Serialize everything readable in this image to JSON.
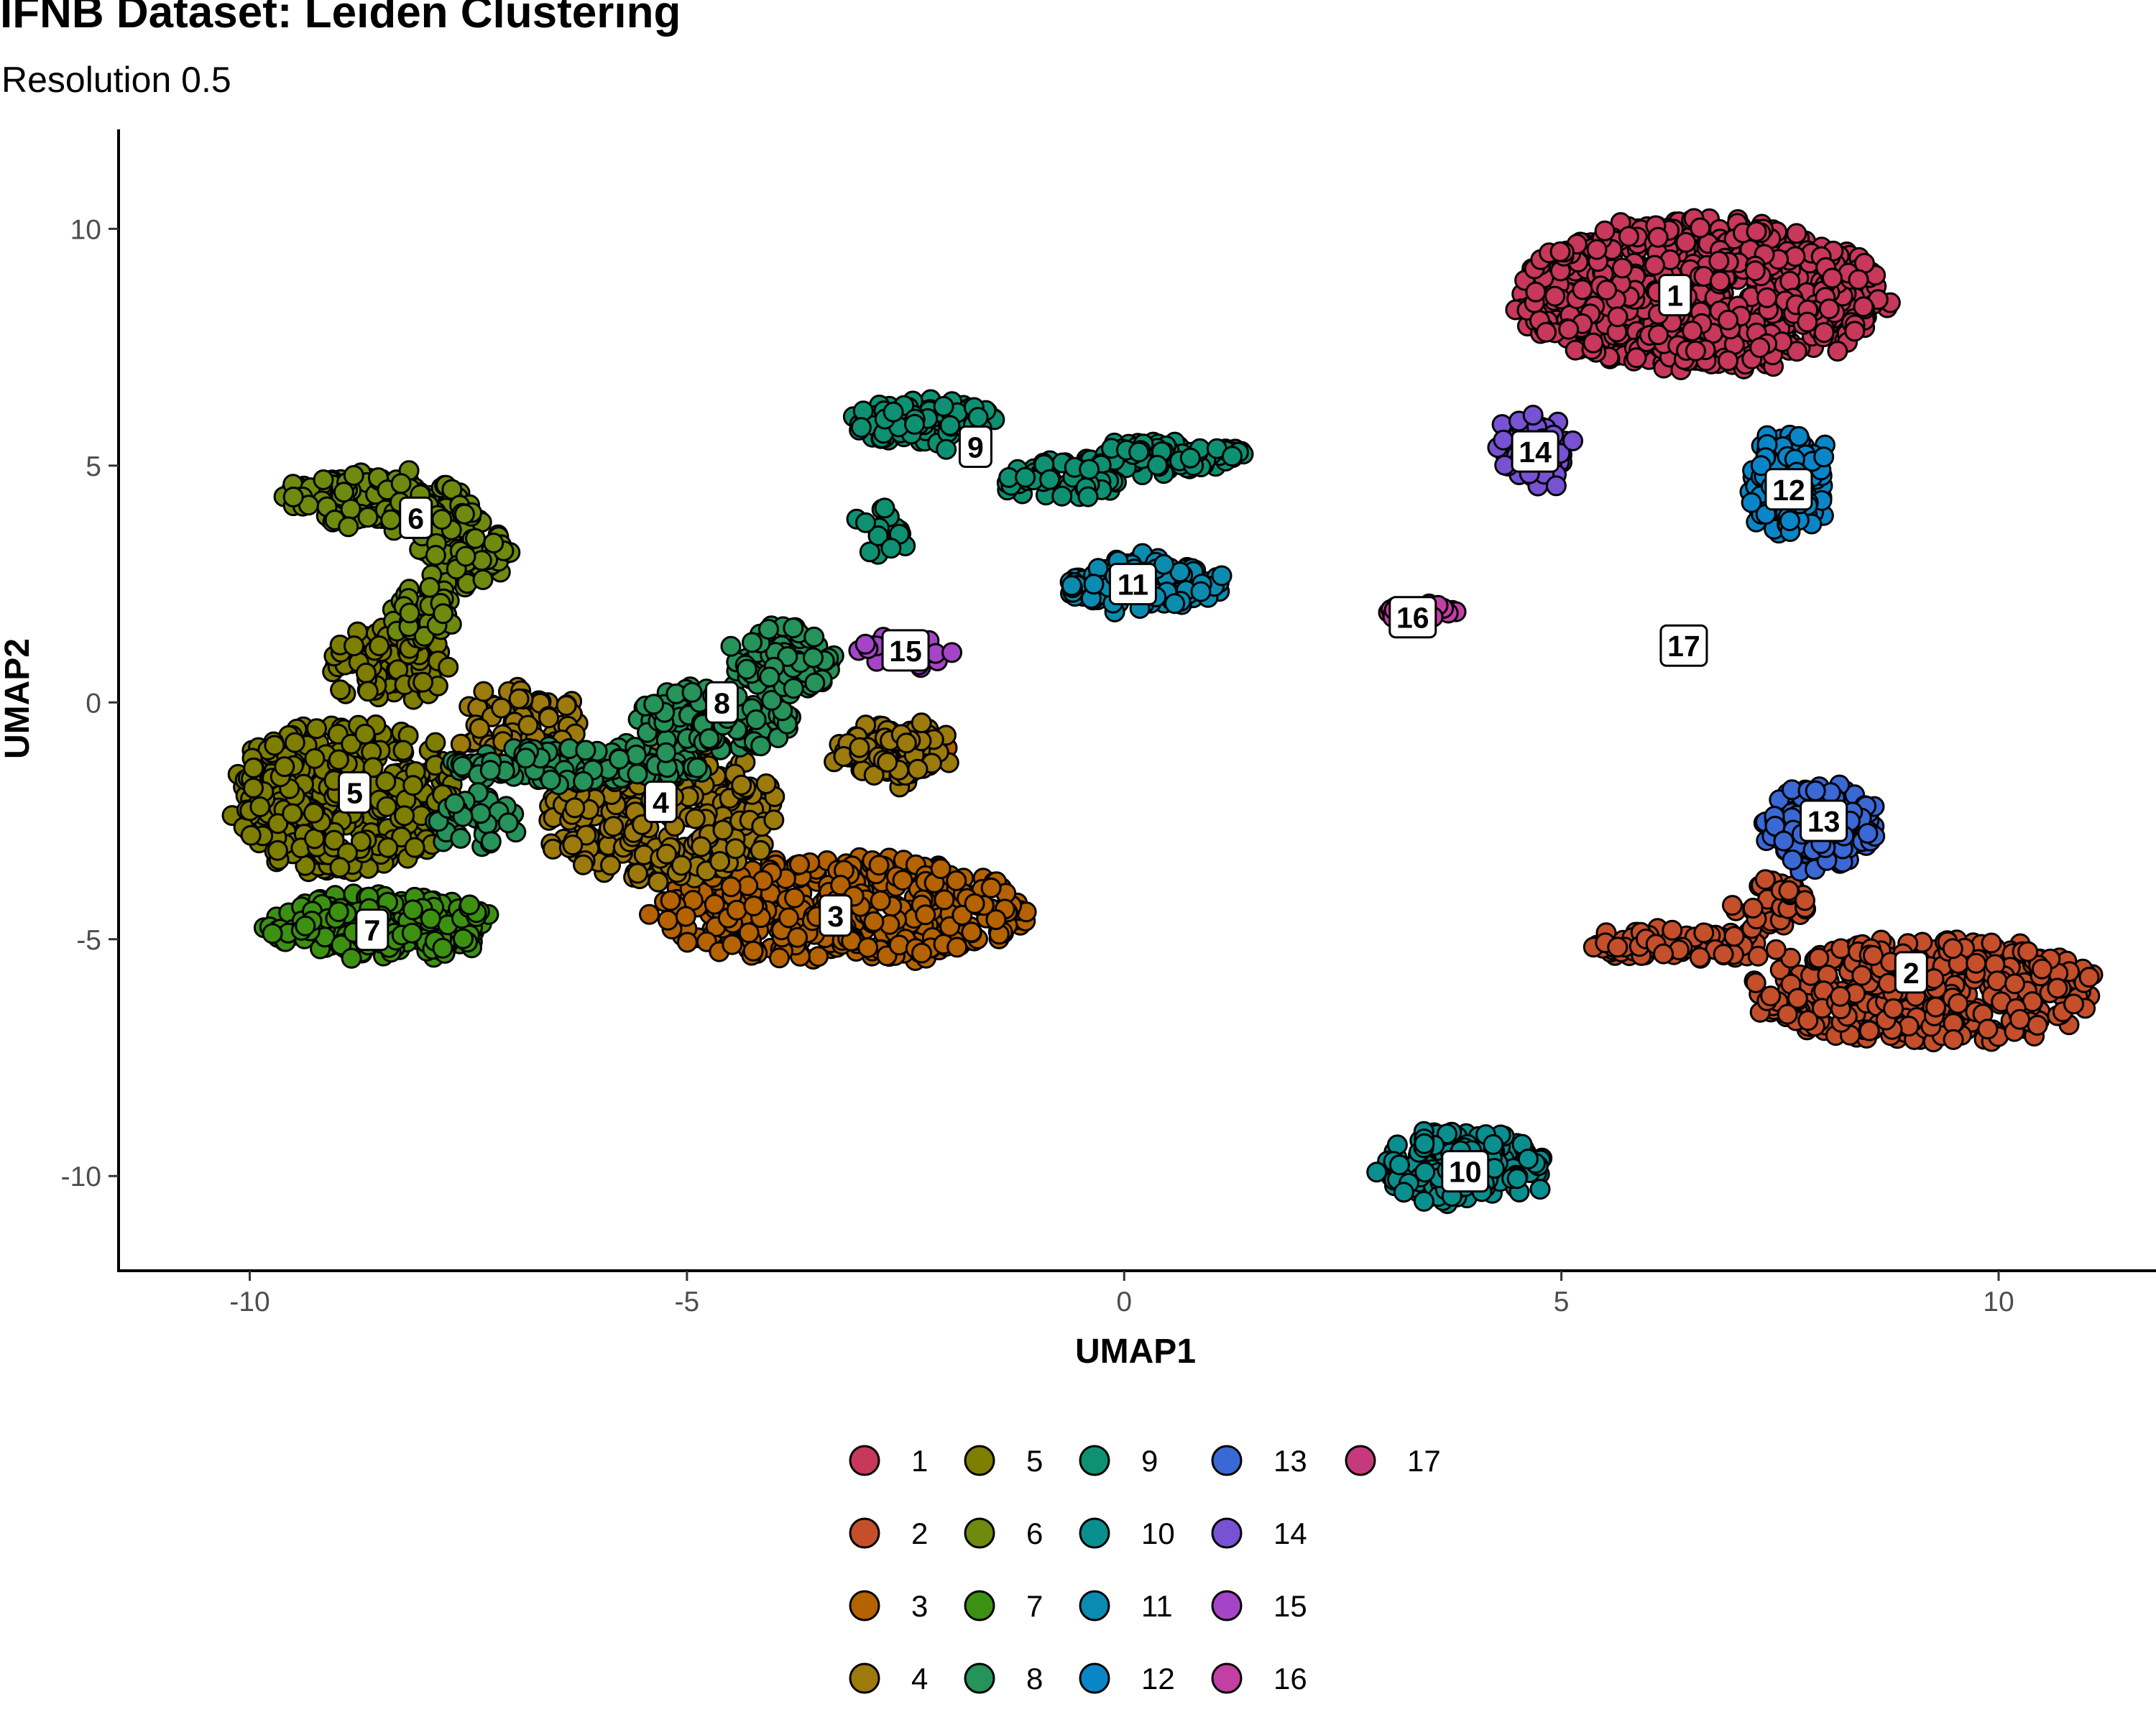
{
  "chart_data": {
    "type": "scatter",
    "title": "IFNB Dataset: Leiden Clustering",
    "subtitle": "Resolution 0.5",
    "xlabel": "UMAP1",
    "ylabel": "UMAP2",
    "xlim": [
      -11.5,
      11.8
    ],
    "ylim": [
      -12.0,
      12.1
    ],
    "xticks": [
      -10,
      -5,
      0,
      5,
      10
    ],
    "yticks": [
      -10,
      -5,
      0,
      5,
      10
    ],
    "xtick_labels": [
      "-10",
      "-5",
      "0",
      "5",
      "10"
    ],
    "ytick_labels": [
      "-10",
      "-5",
      "0",
      "5",
      "10"
    ],
    "grid": false,
    "legend_position": "bottom",
    "clusters": [
      {
        "id": "1",
        "color": "#C7385A",
        "label_pos": [
          6.3,
          8.6
        ],
        "blobs": [
          [
            6.6,
            8.6,
            2.1,
            1.6,
            700
          ]
        ]
      },
      {
        "id": "2",
        "color": "#C44F2A",
        "label_pos": [
          9.0,
          -5.7
        ],
        "blobs": [
          [
            9.2,
            -6.1,
            2.0,
            1.1,
            420
          ],
          [
            6.4,
            -5.1,
            1.1,
            0.35,
            90
          ],
          [
            7.4,
            -4.2,
            0.4,
            0.5,
            40
          ]
        ]
      },
      {
        "id": "3",
        "color": "#B56200",
        "label_pos": [
          -3.3,
          -4.5
        ],
        "blobs": [
          [
            -3.2,
            -4.4,
            2.1,
            1.1,
            420
          ],
          [
            -2.6,
            -1.0,
            0.6,
            0.5,
            40
          ]
        ]
      },
      {
        "id": "4",
        "color": "#9C7A0C",
        "label_pos": [
          -5.3,
          -2.1
        ],
        "blobs": [
          [
            -5.3,
            -2.3,
            1.3,
            1.5,
            320
          ],
          [
            -2.6,
            -1.0,
            0.7,
            0.6,
            80
          ],
          [
            -6.9,
            -0.5,
            0.7,
            0.8,
            80
          ]
        ]
      },
      {
        "id": "5",
        "color": "#7E7E00",
        "label_pos": [
          -8.8,
          -1.9
        ],
        "blobs": [
          [
            -8.9,
            -2.0,
            1.3,
            1.6,
            360
          ],
          [
            -8.4,
            0.8,
            0.7,
            0.8,
            80
          ]
        ]
      },
      {
        "id": "6",
        "color": "#6E8A0F",
        "label_pos": [
          -8.1,
          3.9
        ],
        "blobs": [
          [
            -8.6,
            4.3,
            1.0,
            0.55,
            160
          ],
          [
            -7.6,
            3.3,
            0.5,
            0.9,
            80
          ],
          [
            -8.0,
            1.9,
            0.35,
            0.6,
            40
          ]
        ]
      },
      {
        "id": "7",
        "color": "#3D9112",
        "label_pos": [
          -8.6,
          -4.8
        ],
        "blobs": [
          [
            -8.5,
            -4.7,
            1.3,
            0.65,
            300
          ]
        ]
      },
      {
        "id": "8",
        "color": "#25935A",
        "label_pos": [
          -4.6,
          0.0
        ],
        "blobs": [
          [
            -6.2,
            -1.3,
            1.5,
            0.4,
            140
          ],
          [
            -4.7,
            -0.3,
            0.9,
            0.7,
            120
          ],
          [
            -3.9,
            0.9,
            0.6,
            0.8,
            80
          ],
          [
            -7.4,
            -2.5,
            0.5,
            0.6,
            40
          ]
        ]
      },
      {
        "id": "9",
        "color": "#0D9172",
        "label_pos": [
          -1.7,
          5.4
        ],
        "blobs": [
          [
            -2.3,
            5.9,
            0.8,
            0.45,
            120
          ],
          [
            0.5,
            5.2,
            0.9,
            0.28,
            110
          ],
          [
            -0.7,
            4.7,
            0.6,
            0.4,
            50
          ],
          [
            -2.8,
            3.6,
            0.3,
            0.5,
            20
          ]
        ]
      },
      {
        "id": "10",
        "color": "#0A8F8F",
        "label_pos": [
          3.9,
          -9.9
        ],
        "blobs": [
          [
            3.9,
            -9.8,
            0.9,
            0.8,
            200
          ]
        ]
      },
      {
        "id": "11",
        "color": "#0A8CB0",
        "label_pos": [
          0.1,
          2.5
        ],
        "blobs": [
          [
            0.2,
            2.5,
            0.9,
            0.55,
            160
          ]
        ]
      },
      {
        "id": "12",
        "color": "#0A86C8",
        "label_pos": [
          7.6,
          4.5
        ],
        "blobs": [
          [
            7.6,
            4.6,
            0.45,
            1.1,
            140
          ]
        ]
      },
      {
        "id": "13",
        "color": "#3A68D4",
        "label_pos": [
          8.0,
          -2.5
        ],
        "blobs": [
          [
            8.0,
            -2.6,
            0.6,
            0.9,
            160
          ]
        ]
      },
      {
        "id": "14",
        "color": "#7752D2",
        "label_pos": [
          4.7,
          5.3
        ],
        "blobs": [
          [
            4.7,
            5.3,
            0.35,
            0.85,
            60
          ]
        ]
      },
      {
        "id": "15",
        "color": "#A644C8",
        "label_pos": [
          -2.5,
          1.1
        ],
        "blobs": [
          [
            -2.5,
            1.1,
            0.5,
            0.3,
            40
          ]
        ]
      },
      {
        "id": "16",
        "color": "#C23FA4",
        "label_pos": [
          3.3,
          1.8
        ],
        "blobs": [
          [
            3.4,
            1.9,
            0.4,
            0.15,
            20
          ]
        ]
      },
      {
        "id": "17",
        "color": "#C53A7D",
        "label_pos": [
          6.4,
          1.2
        ],
        "blobs": []
      }
    ]
  }
}
